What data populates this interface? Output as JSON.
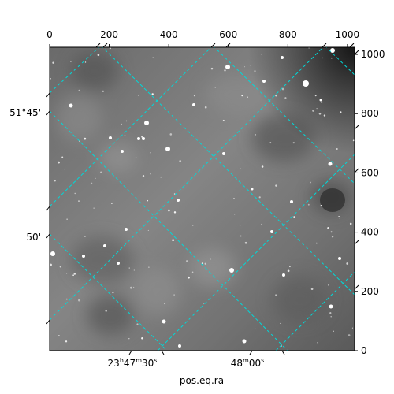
{
  "figure": {
    "xlabel": "pos.eq.ra",
    "pixel_axis_x": {
      "ticks": [
        0,
        200,
        400,
        600,
        800,
        1000
      ],
      "range": [
        0,
        1024
      ]
    },
    "pixel_axis_y": {
      "ticks": [
        0,
        200,
        400,
        600,
        800,
        1000
      ],
      "range": [
        0,
        1024
      ]
    },
    "ra_tick_labels": [
      {
        "prefix": "23",
        "h": "h",
        "mm": "47",
        "m": "m",
        "ss": "30",
        "s": "s",
        "at_x": 330
      },
      {
        "prefix": "48",
        "m": "m",
        "ss": "00",
        "s": "s",
        "at_x": 665
      }
    ],
    "dec_tick_labels": [
      {
        "label": "51°45'",
        "at_y": 800
      },
      {
        "label": "50'",
        "at_y": 385
      }
    ],
    "grid_color": "#00d9d9",
    "image_colormap": "gray",
    "frame_color": "#000000"
  }
}
